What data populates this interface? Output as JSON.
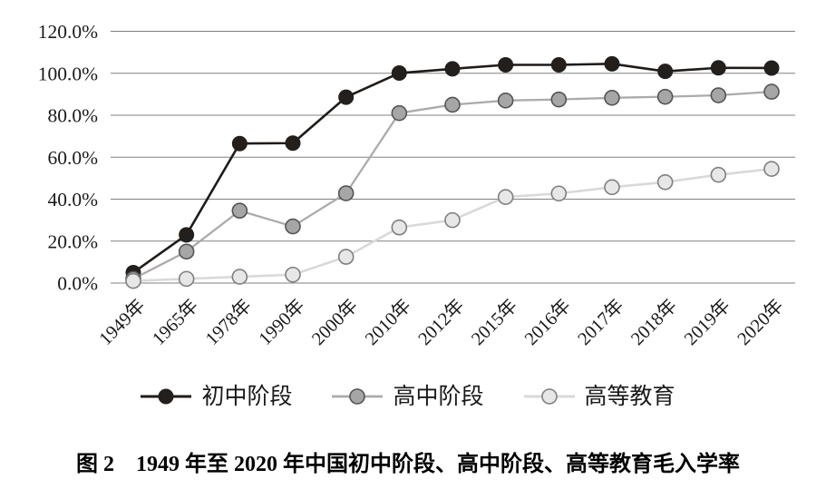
{
  "figure": {
    "caption": "图 2　1949 年至 2020 年中国初中阶段、高中阶段、高等教育毛入学率"
  },
  "chart_data": {
    "type": "line",
    "title": "",
    "xlabel": "",
    "ylabel": "",
    "categories": [
      "1949年",
      "1965年",
      "1978年",
      "1990年",
      "2000年",
      "2010年",
      "2012年",
      "2015年",
      "2016年",
      "2017年",
      "2018年",
      "2019年",
      "2020年"
    ],
    "series": [
      {
        "id": "junior-secondary",
        "name": "初中阶段",
        "values": [
          5.0,
          23.0,
          66.5,
          66.7,
          88.6,
          100.1,
          102.1,
          104.0,
          104.0,
          104.5,
          100.9,
          102.6,
          102.5
        ],
        "line_color": "#1f1b18",
        "line_width": 2.6,
        "marker_fill": "#231f1c",
        "marker_stroke": "#231f1c",
        "marker_stroke_width": 1
      },
      {
        "id": "senior-secondary",
        "name": "高中阶段",
        "values": [
          2.0,
          15.0,
          34.5,
          27.0,
          42.8,
          81.0,
          85.0,
          87.0,
          87.5,
          88.3,
          88.8,
          89.5,
          91.2
        ],
        "line_color": "#ababab",
        "line_width": 2.3,
        "marker_fill": "#a6a6a6",
        "marker_stroke": "#545454",
        "marker_stroke_width": 1.6
      },
      {
        "id": "higher-education",
        "name": "高等教育",
        "values": [
          1.0,
          2.0,
          3.0,
          4.0,
          12.5,
          26.5,
          30.0,
          41.0,
          42.7,
          45.7,
          48.1,
          51.6,
          54.4
        ],
        "line_color": "#d9d9d9",
        "line_width": 2.6,
        "marker_fill": "#e7e7e7",
        "marker_stroke": "#7f7f7f",
        "marker_stroke_width": 1.6
      }
    ],
    "ylim": [
      0,
      120
    ],
    "ytick_step": 20,
    "ytick_labels": [
      "0.0%",
      "20.0%",
      "40.0%",
      "60.0%",
      "80.0%",
      "100.0%",
      "120.0%"
    ],
    "grid": "horizontal-only",
    "gridline_color": "#808080",
    "legend_position": "bottom",
    "background_color": "#ffffff"
  }
}
